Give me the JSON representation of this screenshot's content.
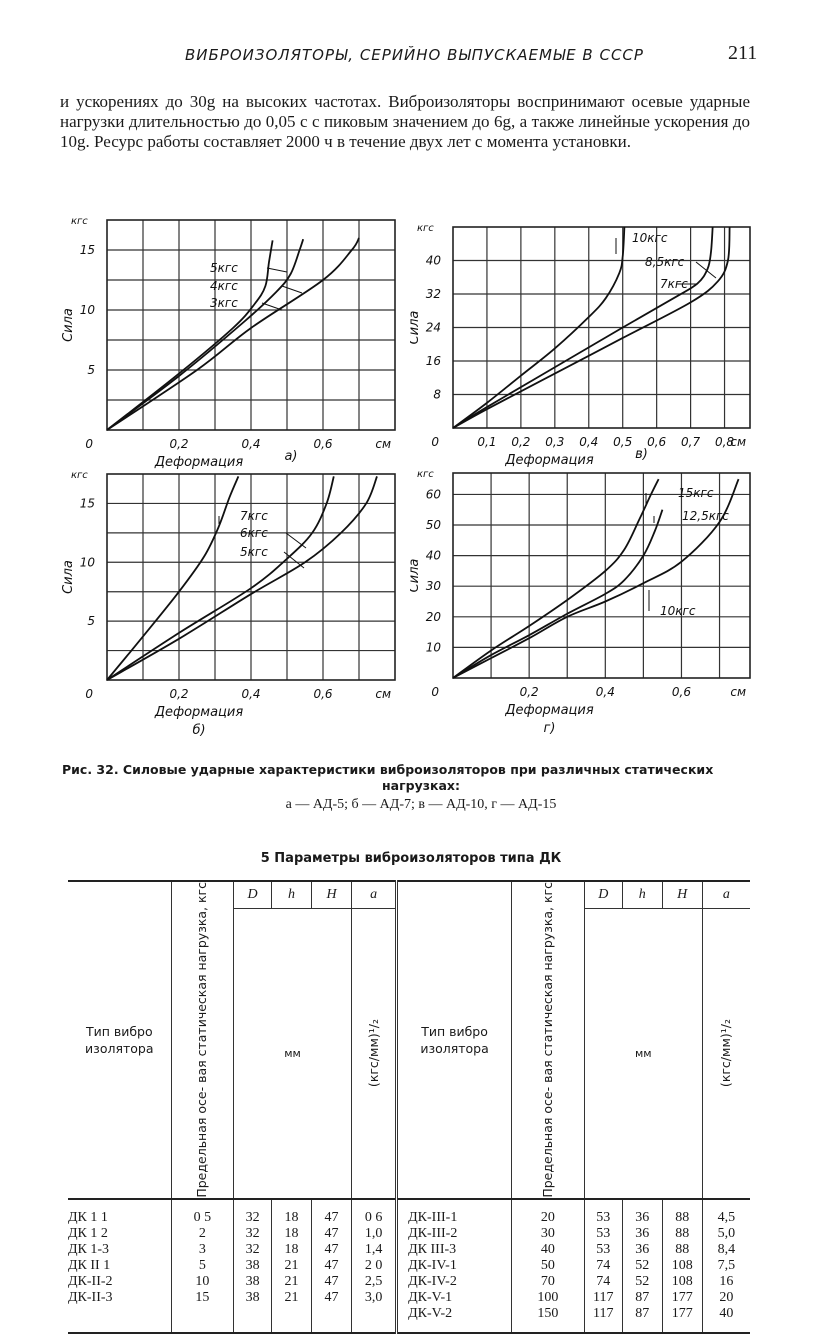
{
  "header": {
    "running_head": "ВИБРОИЗОЛЯТОРЫ, СЕРИЙНО ВЫПУСКАЕМЫЕ В СССР",
    "page_number": "211"
  },
  "body_text": "и ускорениях до 30g на высоких частотах. Виброизоляторы воспринимают осевые ударные нагрузки длительностью до 0,05 с с пиковым значением до 6g, а также линейные ускорения до 10g. Ресурс работы составляет 2000 ч в течение двух лет с момента установки.",
  "chart_data": [
    {
      "type": "line",
      "panel": "а)",
      "xlabel": "Деформация",
      "ylabel": "Сила",
      "x_unit": "см",
      "y_unit": "кгс",
      "xlim": [
        0,
        0.8
      ],
      "ylim": [
        0,
        17.5
      ],
      "x_grid_step": 0.1,
      "y_grid_step": 2.5,
      "grid": true,
      "x_ticks": [
        "0,2",
        "0,4",
        "0,6"
      ],
      "x_tick_values": [
        0.2,
        0.4,
        0.6
      ],
      "y_ticks": [
        "5",
        "10",
        "15"
      ],
      "y_tick_values": [
        5,
        10,
        15
      ],
      "series": [
        {
          "name": "5кгс",
          "x": [
            0,
            0.2,
            0.35,
            0.41,
            0.44,
            0.45,
            0.46
          ],
          "y": [
            0,
            4.7,
            8.5,
            10.5,
            12,
            14,
            15.8
          ]
        },
        {
          "name": "4кгс",
          "x": [
            0,
            0.2,
            0.38,
            0.47,
            0.51,
            0.535,
            0.545
          ],
          "y": [
            0,
            4.5,
            9,
            11.5,
            13,
            15,
            15.9
          ]
        },
        {
          "name": "3кгс",
          "x": [
            0,
            0.25,
            0.4,
            0.6,
            0.68,
            0.7
          ],
          "y": [
            0,
            5,
            8.5,
            12.5,
            15,
            16
          ]
        }
      ]
    },
    {
      "type": "line",
      "panel": "в)",
      "xlabel": "Деформация",
      "ylabel": "Сила",
      "x_unit": "см",
      "y_unit": "кгс",
      "xlim": [
        0,
        0.875
      ],
      "ylim": [
        0,
        48
      ],
      "x_grid_step": 0.1,
      "y_grid_step": 8,
      "grid": true,
      "x_ticks": [
        "0,1",
        "0,2",
        "0,3",
        "0,4",
        "0,5",
        "0,6",
        "0,7",
        "0,8"
      ],
      "x_tick_values": [
        0.1,
        0.2,
        0.3,
        0.4,
        0.5,
        0.6,
        0.7,
        0.8
      ],
      "y_ticks": [
        "8",
        "16",
        "24",
        "32",
        "40"
      ],
      "y_tick_values": [
        8,
        16,
        24,
        32,
        40
      ],
      "series": [
        {
          "name": "10кгс",
          "x": [
            0,
            0.1,
            0.2,
            0.3,
            0.4,
            0.45,
            0.49,
            0.5,
            0.505
          ],
          "y": [
            0,
            6,
            12.5,
            19,
            26.5,
            31,
            37,
            41,
            48
          ]
        },
        {
          "name": "8,5кгс",
          "x": [
            0,
            0.1,
            0.3,
            0.5,
            0.65,
            0.72,
            0.75,
            0.76,
            0.765
          ],
          "y": [
            0,
            5,
            14.5,
            24,
            31,
            34.5,
            38,
            42,
            48
          ]
        },
        {
          "name": "7кгс",
          "x": [
            0,
            0.1,
            0.3,
            0.5,
            0.7,
            0.78,
            0.81,
            0.815
          ],
          "y": [
            0,
            4.5,
            13,
            21.5,
            30,
            35,
            40,
            48
          ]
        }
      ]
    },
    {
      "type": "line",
      "panel": "б)",
      "xlabel": "Деформация",
      "ylabel": "Сила",
      "x_unit": "см",
      "y_unit": "кгс",
      "xlim": [
        0,
        0.8
      ],
      "ylim": [
        0,
        17.5
      ],
      "x_grid_step": 0.1,
      "y_grid_step": 2.5,
      "grid": true,
      "x_ticks": [
        "0,2",
        "0,4",
        "0,6"
      ],
      "x_tick_values": [
        0.2,
        0.4,
        0.6
      ],
      "y_ticks": [
        "5",
        "10",
        "15"
      ],
      "y_tick_values": [
        5,
        10,
        15
      ],
      "series": [
        {
          "name": "7кгс",
          "x": [
            0,
            0.1,
            0.2,
            0.27,
            0.31,
            0.34,
            0.365
          ],
          "y": [
            0,
            3.7,
            7.5,
            10.5,
            13,
            15.5,
            17.3
          ]
        },
        {
          "name": "6кгс",
          "x": [
            0,
            0.2,
            0.4,
            0.5,
            0.57,
            0.61,
            0.63
          ],
          "y": [
            0,
            4,
            7.8,
            10.3,
            12.5,
            15,
            17.3
          ]
        },
        {
          "name": "5кгс",
          "x": [
            0,
            0.2,
            0.4,
            0.55,
            0.65,
            0.72,
            0.75
          ],
          "y": [
            0,
            3.5,
            7.3,
            10,
            12.5,
            15,
            17.3
          ]
        }
      ]
    },
    {
      "type": "line",
      "panel": "г)",
      "xlabel": "Деформация",
      "ylabel": "Сила",
      "x_unit": "см",
      "y_unit": "кгс",
      "xlim": [
        0,
        0.78
      ],
      "ylim": [
        0,
        67
      ],
      "x_grid_step": 0.1,
      "y_grid_step": 10,
      "grid": true,
      "x_ticks": [
        "0,2",
        "0,4",
        "0,6"
      ],
      "x_tick_values": [
        0.2,
        0.4,
        0.6
      ],
      "y_ticks": [
        "10",
        "20",
        "30",
        "40",
        "50",
        "60"
      ],
      "y_tick_values": [
        10,
        20,
        30,
        40,
        50,
        60
      ],
      "series": [
        {
          "name": "15кгс",
          "x": [
            0,
            0.1,
            0.2,
            0.3,
            0.4,
            0.45,
            0.49,
            0.52,
            0.54
          ],
          "y": [
            0,
            9,
            17,
            25.5,
            35,
            42,
            52,
            60,
            65
          ]
        },
        {
          "name": "12,5кгс",
          "x": [
            0,
            0.1,
            0.2,
            0.3,
            0.4,
            0.45,
            0.5,
            0.53,
            0.55
          ],
          "y": [
            0,
            7.5,
            14,
            21,
            27.5,
            32,
            40,
            48,
            55
          ]
        },
        {
          "name": "10кгс",
          "x": [
            0,
            0.1,
            0.2,
            0.3,
            0.4,
            0.5,
            0.6,
            0.7,
            0.75
          ],
          "y": [
            0,
            6.5,
            13,
            20,
            25,
            31,
            38,
            51,
            65
          ]
        }
      ]
    }
  ],
  "caption": {
    "line1": "Рис. 32. Силовые ударные характеристики виброизоляторов при различных статических",
    "line2": "нагрузках:",
    "line3": "а — АД-5; б — АД-7; в — АД-10, г — АД-15"
  },
  "table": {
    "title": "5  Параметры виброизоляторов типа ДК",
    "headers": {
      "type": "Тип вибро изолятора",
      "load": "Предельная осе- вая статическая нагрузка, кгс",
      "D": "D",
      "h": "h",
      "H": "H",
      "a": "a",
      "mm": "мм",
      "a_unit": "(кгс/мм)¹/₂"
    },
    "left": {
      "type": [
        "ДК 1 1",
        "ДК 1 2",
        "ДК 1-3",
        "ДК II 1",
        "ДК-II-2",
        "ДК-II-3"
      ],
      "load": [
        "0 5",
        "2",
        "3",
        "5",
        "10",
        "15"
      ],
      "D": [
        "32",
        "32",
        "32",
        "38",
        "38",
        "38"
      ],
      "h": [
        "18",
        "18",
        "18",
        "21",
        "21",
        "21"
      ],
      "H": [
        "47",
        "47",
        "47",
        "47",
        "47",
        "47"
      ],
      "a": [
        "0 6",
        "1,0",
        "1,4",
        "2 0",
        "2,5",
        "3,0"
      ]
    },
    "right": {
      "type": [
        "ДК-III-1",
        "ДК-III-2",
        "ДК III-3",
        "ДК-IV-1",
        "ДК-IV-2",
        "ДК-V-1",
        "ДК-V-2"
      ],
      "load": [
        "20",
        "30",
        "40",
        "50",
        "70",
        "100",
        "150"
      ],
      "D": [
        "53",
        "53",
        "53",
        "74",
        "74",
        "117",
        "117"
      ],
      "h": [
        "36",
        "36",
        "36",
        "52",
        "52",
        "87",
        "87"
      ],
      "H": [
        "88",
        "88",
        "88",
        "108",
        "108",
        "177",
        "177"
      ],
      "a": [
        "4,5",
        "5,0",
        "8,4",
        "7,5",
        "16",
        "20",
        "40"
      ]
    }
  }
}
